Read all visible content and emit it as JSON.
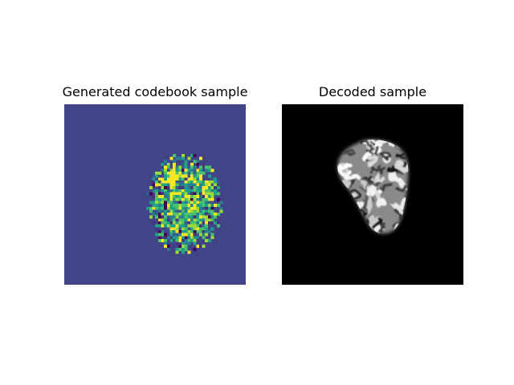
{
  "left_panel": {
    "title": "Generated codebook sample",
    "colormap": "viridis",
    "background_color": "#414487"
  },
  "right_panel": {
    "title": "Decoded sample",
    "colormap": "gray",
    "background_color": "#000000"
  }
}
